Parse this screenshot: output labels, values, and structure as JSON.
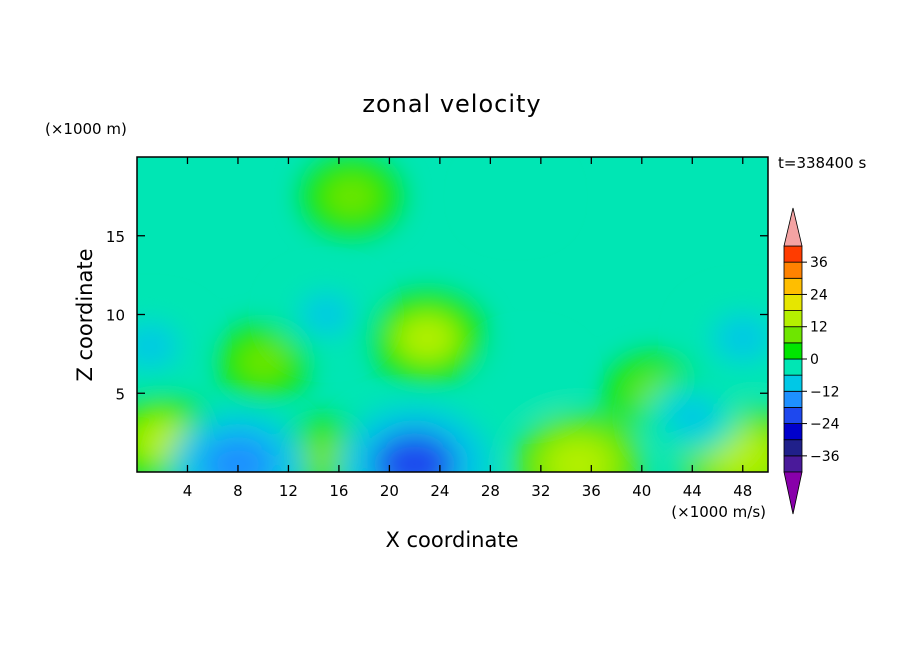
{
  "chart_data": {
    "type": "heatmap",
    "title": "zonal velocity",
    "xlabel": "X coordinate",
    "ylabel": "Z coordinate",
    "x_unit": "(×1000 m/s)",
    "y_unit": "(×1000 m)",
    "time_label": "t=338400 s",
    "xlim": [
      0,
      50
    ],
    "ylim": [
      0,
      20
    ],
    "x_ticks": [
      "4",
      "8",
      "12",
      "16",
      "20",
      "24",
      "28",
      "32",
      "36",
      "40",
      "44",
      "48"
    ],
    "y_ticks": [
      "5",
      "10",
      "15"
    ],
    "colorbar": {
      "tick_labels": [
        "36",
        "24",
        "12",
        "0",
        "−12",
        "−24",
        "−36"
      ],
      "levels": [
        -42,
        -36,
        -30,
        -24,
        -18,
        -12,
        -6,
        0,
        6,
        12,
        18,
        24,
        30,
        36,
        42
      ],
      "colors": [
        "#8800aa",
        "#4a1a9a",
        "#20208a",
        "#0000cc",
        "#1e48ee",
        "#1e90ff",
        "#00c8e6",
        "#00e6b4",
        "#00e600",
        "#6ee600",
        "#b4f000",
        "#e6e600",
        "#ffbe00",
        "#ff8200",
        "#ff3c00",
        "#e60000",
        "#f4a3a3"
      ]
    },
    "features": [
      {
        "x": 23,
        "y": 8.5,
        "value": 12
      },
      {
        "x": 10,
        "y": 7.0,
        "value": 7
      },
      {
        "x": 41,
        "y": 5.0,
        "value": 8
      },
      {
        "x": 35,
        "y": 0.5,
        "value": 14
      },
      {
        "x": 48,
        "y": 1.0,
        "value": 14
      },
      {
        "x": 2,
        "y": 2.0,
        "value": 12
      },
      {
        "x": 15,
        "y": 1.0,
        "value": 8
      },
      {
        "x": 22,
        "y": 0.5,
        "value": -20
      },
      {
        "x": 8,
        "y": 0.5,
        "value": -16
      },
      {
        "x": 1,
        "y": 8.0,
        "value": -9
      },
      {
        "x": 48,
        "y": 8.5,
        "value": -10
      },
      {
        "x": 15,
        "y": 10.0,
        "value": -7
      },
      {
        "x": 31,
        "y": 6.0,
        "value": -6
      },
      {
        "x": 17,
        "y": 17.5,
        "value": 8
      },
      {
        "x": 30,
        "y": 17.5,
        "value": -4
      },
      {
        "x": 44,
        "y": 3.5,
        "value": -8
      }
    ]
  }
}
